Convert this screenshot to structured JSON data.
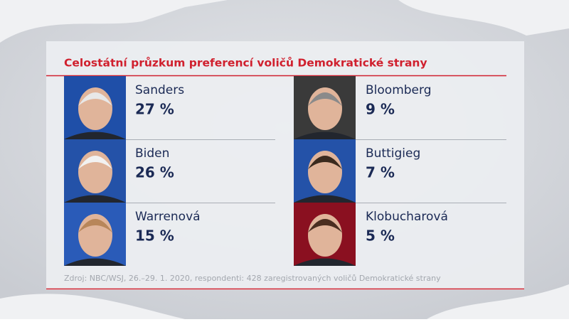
{
  "title": "Celostátní průzkum preferencí voličů Demokratické strany",
  "candidates": [
    {
      "name": "Sanders",
      "value": "27 %"
    },
    {
      "name": "Biden",
      "value": "26 %"
    },
    {
      "name": "Warrenová",
      "value": "15 %"
    },
    {
      "name": "Bloomberg",
      "value": "9 %"
    },
    {
      "name": "Buttigieg",
      "value": "7 %"
    },
    {
      "name": "Klobucharová",
      "value": "5 %"
    }
  ],
  "source": "Zdroj: NBC/WSJ, 26.–29. 1. 2020, respondenti: 428 zaregistrovaných voličů Demokratické strany"
}
